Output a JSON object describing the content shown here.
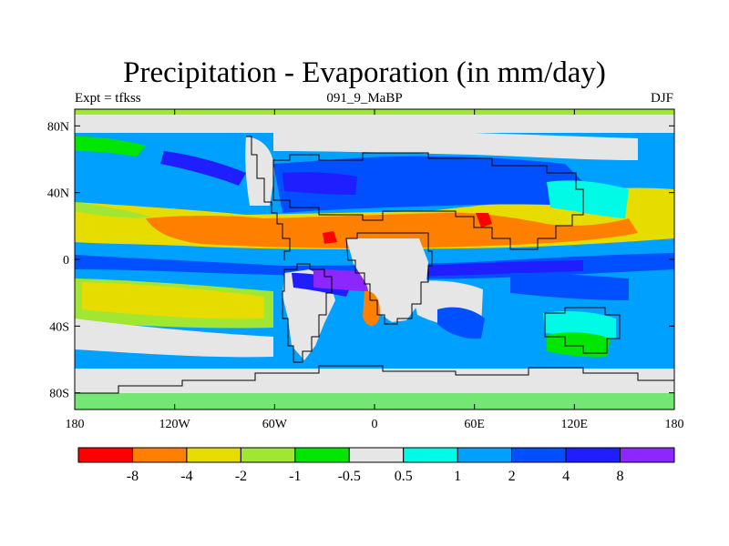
{
  "title": "Precipitation - Evaporation (in mm/day)",
  "subtitle_left": "Expt = tfkss",
  "subtitle_center": "091_9_MaBP",
  "subtitle_right": "DJF",
  "lat_ticks": [
    {
      "lat": 80,
      "label": "80N"
    },
    {
      "lat": 40,
      "label": "40N"
    },
    {
      "lat": 0,
      "label": "0"
    },
    {
      "lat": -40,
      "label": "40S"
    },
    {
      "lat": -80,
      "label": "80S"
    }
  ],
  "lon_ticks": [
    {
      "lon": -180,
      "label": "180"
    },
    {
      "lon": -120,
      "label": "120W"
    },
    {
      "lon": -60,
      "label": "60W"
    },
    {
      "lon": 0,
      "label": "0"
    },
    {
      "lon": 60,
      "label": "60E"
    },
    {
      "lon": 120,
      "label": "120E"
    },
    {
      "lon": 180,
      "label": "180"
    }
  ],
  "colorbar": {
    "colors": [
      "#ff0000",
      "#ff8000",
      "#e6dc00",
      "#a0e632",
      "#00e600",
      "#e6e6e6",
      "#00fae6",
      "#00a0ff",
      "#0050ff",
      "#1e1eff",
      "#8c28ff"
    ],
    "labels": [
      "-8",
      "-4",
      "-2",
      "-1",
      "-0.5",
      "0.5",
      "1",
      "2",
      "4",
      "8"
    ]
  },
  "colors": {
    "ocean_background": "#00a0ff",
    "land_background": "#e6e6e6"
  }
}
